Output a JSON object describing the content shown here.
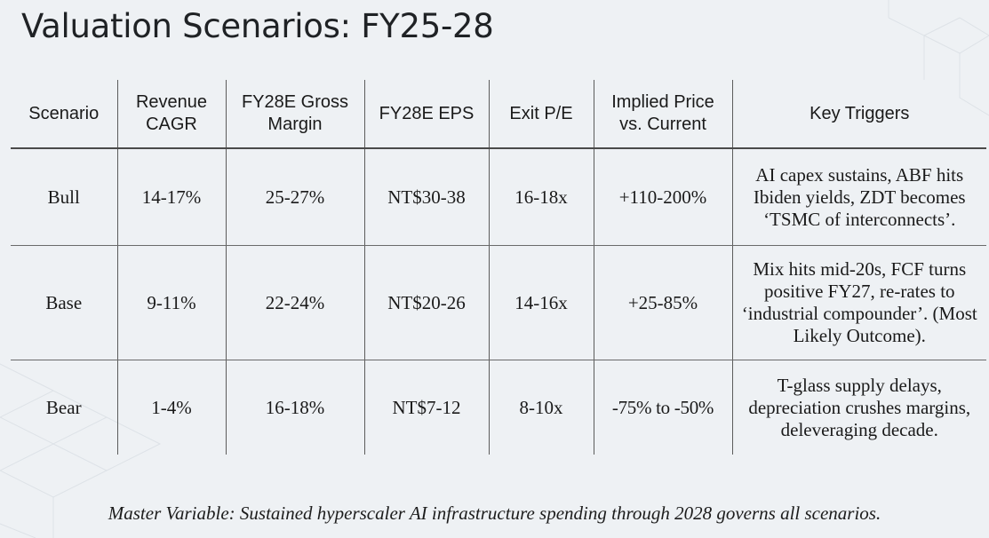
{
  "title": "Valuation Scenarios: FY25-28",
  "table": {
    "headers": [
      "Scenario",
      "Revenue\nCAGR",
      "FY28E Gross\nMargin",
      "FY28E EPS",
      "Exit P/E",
      "Implied Price\nvs. Current",
      "Key Triggers"
    ],
    "rows": [
      {
        "scenario": "Bull",
        "revenue_cagr": "14-17%",
        "gross_margin": "25-27%",
        "eps": "NT$30-38",
        "exit_pe": "16-18x",
        "implied_price": "+110-200%",
        "key_triggers": "AI capex sustains, ABF hits Ibiden yields, ZDT becomes ‘TSMC of interconnects’."
      },
      {
        "scenario": "Base",
        "revenue_cagr": "9-11%",
        "gross_margin": "22-24%",
        "eps": "NT$20-26",
        "exit_pe": "14-16x",
        "implied_price": "+25-85%",
        "key_triggers": "Mix hits mid-20s, FCF turns positive FY27, re-rates to ‘industrial compounder’. (Most Likely Outcome)."
      },
      {
        "scenario": "Bear",
        "revenue_cagr": "1-4%",
        "gross_margin": "16-18%",
        "eps": "NT$7-12",
        "exit_pe": "8-10x",
        "implied_price": "-75% to -50%",
        "key_triggers": "T-glass supply delays, depreciation crushes margins, deleveraging decade."
      }
    ]
  },
  "footer": "Master Variable: Sustained hyperscaler AI infrastructure spending through 2028 governs all scenarios.",
  "colors": {
    "background": "#eef1f4",
    "upside_text": "#2a4a86",
    "downside_text": "#b4372d",
    "grid_lines": "#5c5c5c"
  }
}
